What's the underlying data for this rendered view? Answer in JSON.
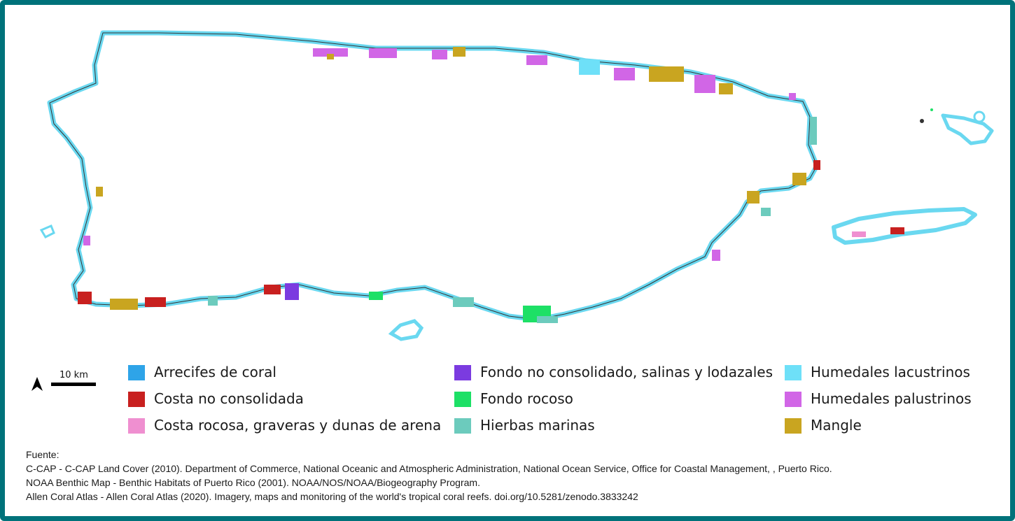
{
  "map": {
    "regions": [
      "Puerto Rico",
      "Vieques",
      "Culebra",
      "Mona"
    ],
    "colors": {
      "coast_outline": "#6ad8f0",
      "land_fill": "#ffffff"
    }
  },
  "scale": {
    "label": "10 km",
    "north_arrow_icon": "north-arrow-icon"
  },
  "legend": {
    "columns": [
      [
        {
          "label": "Arrecifes de coral",
          "color": "#2ea4e8"
        },
        {
          "label": "Costa no consolidada",
          "color": "#c8201f"
        },
        {
          "label": "Costa rocosa, graveras y dunas de arena",
          "color": "#ef8fd0"
        }
      ],
      [
        {
          "label": "Fondo no consolidado, salinas y lodazales",
          "color": "#7b3be0"
        },
        {
          "label": "Fondo rocoso",
          "color": "#1de066"
        },
        {
          "label": "Hierbas marinas",
          "color": "#6ccbbd"
        }
      ],
      [
        {
          "label": "Humedales lacustrinos",
          "color": "#6ee0f8"
        },
        {
          "label": "Humedales palustrinos",
          "color": "#d166e6"
        },
        {
          "label": "Mangle",
          "color": "#c9a520"
        }
      ]
    ]
  },
  "sources": {
    "heading": "Fuente:",
    "lines": [
      "C-CAP -  C-CAP Land Cover (2010). Department of Commerce, National Oceanic and Atmospheric Administration, National Ocean Service, Office for Coastal Management, , Puerto Rico.",
      "NOAA Benthic Map - Benthic Habitats of Puerto Rico (2001).  NOAA/NOS/NOAA/Biogeography Program.",
      "Allen Coral Atlas - Allen Coral Atlas (2020). Imagery, maps and monitoring of the world's tropical coral reefs. doi.org/10.5281/zenodo.3833242"
    ]
  },
  "frame": {
    "border_color": "#00727a"
  }
}
